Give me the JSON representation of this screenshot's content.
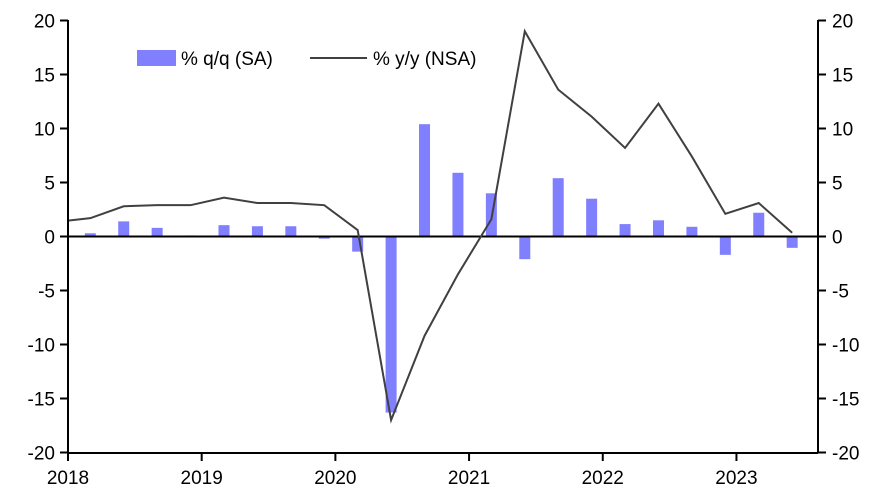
{
  "chart_data": {
    "type": "bar+line",
    "title": "",
    "xlabel": "",
    "ylabel": "",
    "ylim": [
      -20,
      20
    ],
    "y_ticks": [
      -20,
      -15,
      -10,
      -5,
      0,
      5,
      10,
      15,
      20
    ],
    "x_tick_labels": [
      "2018",
      "2019",
      "2020",
      "2021",
      "2022",
      "2023"
    ],
    "legend_position": "top-left",
    "categories": [
      "2018Q1",
      "2018Q2",
      "2018Q3",
      "2018Q4",
      "2019Q1",
      "2019Q2",
      "2019Q3",
      "2019Q4",
      "2020Q1",
      "2020Q2",
      "2020Q3",
      "2020Q4",
      "2021Q1",
      "2021Q2",
      "2021Q3",
      "2021Q4",
      "2022Q1",
      "2022Q2",
      "2022Q3",
      "2022Q4",
      "2023Q1",
      "2023Q2"
    ],
    "series": [
      {
        "name": "% q/q (SA)",
        "type": "bar",
        "color": "#8080ff",
        "values": [
          0.3,
          1.4,
          0.8,
          0.1,
          1.05,
          0.95,
          0.95,
          -0.2,
          -1.4,
          -16.3,
          10.4,
          5.9,
          4.0,
          -2.1,
          5.4,
          3.5,
          1.15,
          1.5,
          0.9,
          -1.7,
          2.2,
          -1.05
        ]
      },
      {
        "name": "% y/y (NSA)",
        "type": "line",
        "color": "#404040",
        "start_value_2017Q4": 1.36,
        "values": [
          1.7,
          2.8,
          2.9,
          2.9,
          3.6,
          3.1,
          3.1,
          2.9,
          0.6,
          -17.0,
          -9.2,
          -3.5,
          1.6,
          19.0,
          13.6,
          11.1,
          8.2,
          12.3,
          7.4,
          2.1,
          3.1,
          0.35
        ]
      }
    ]
  }
}
